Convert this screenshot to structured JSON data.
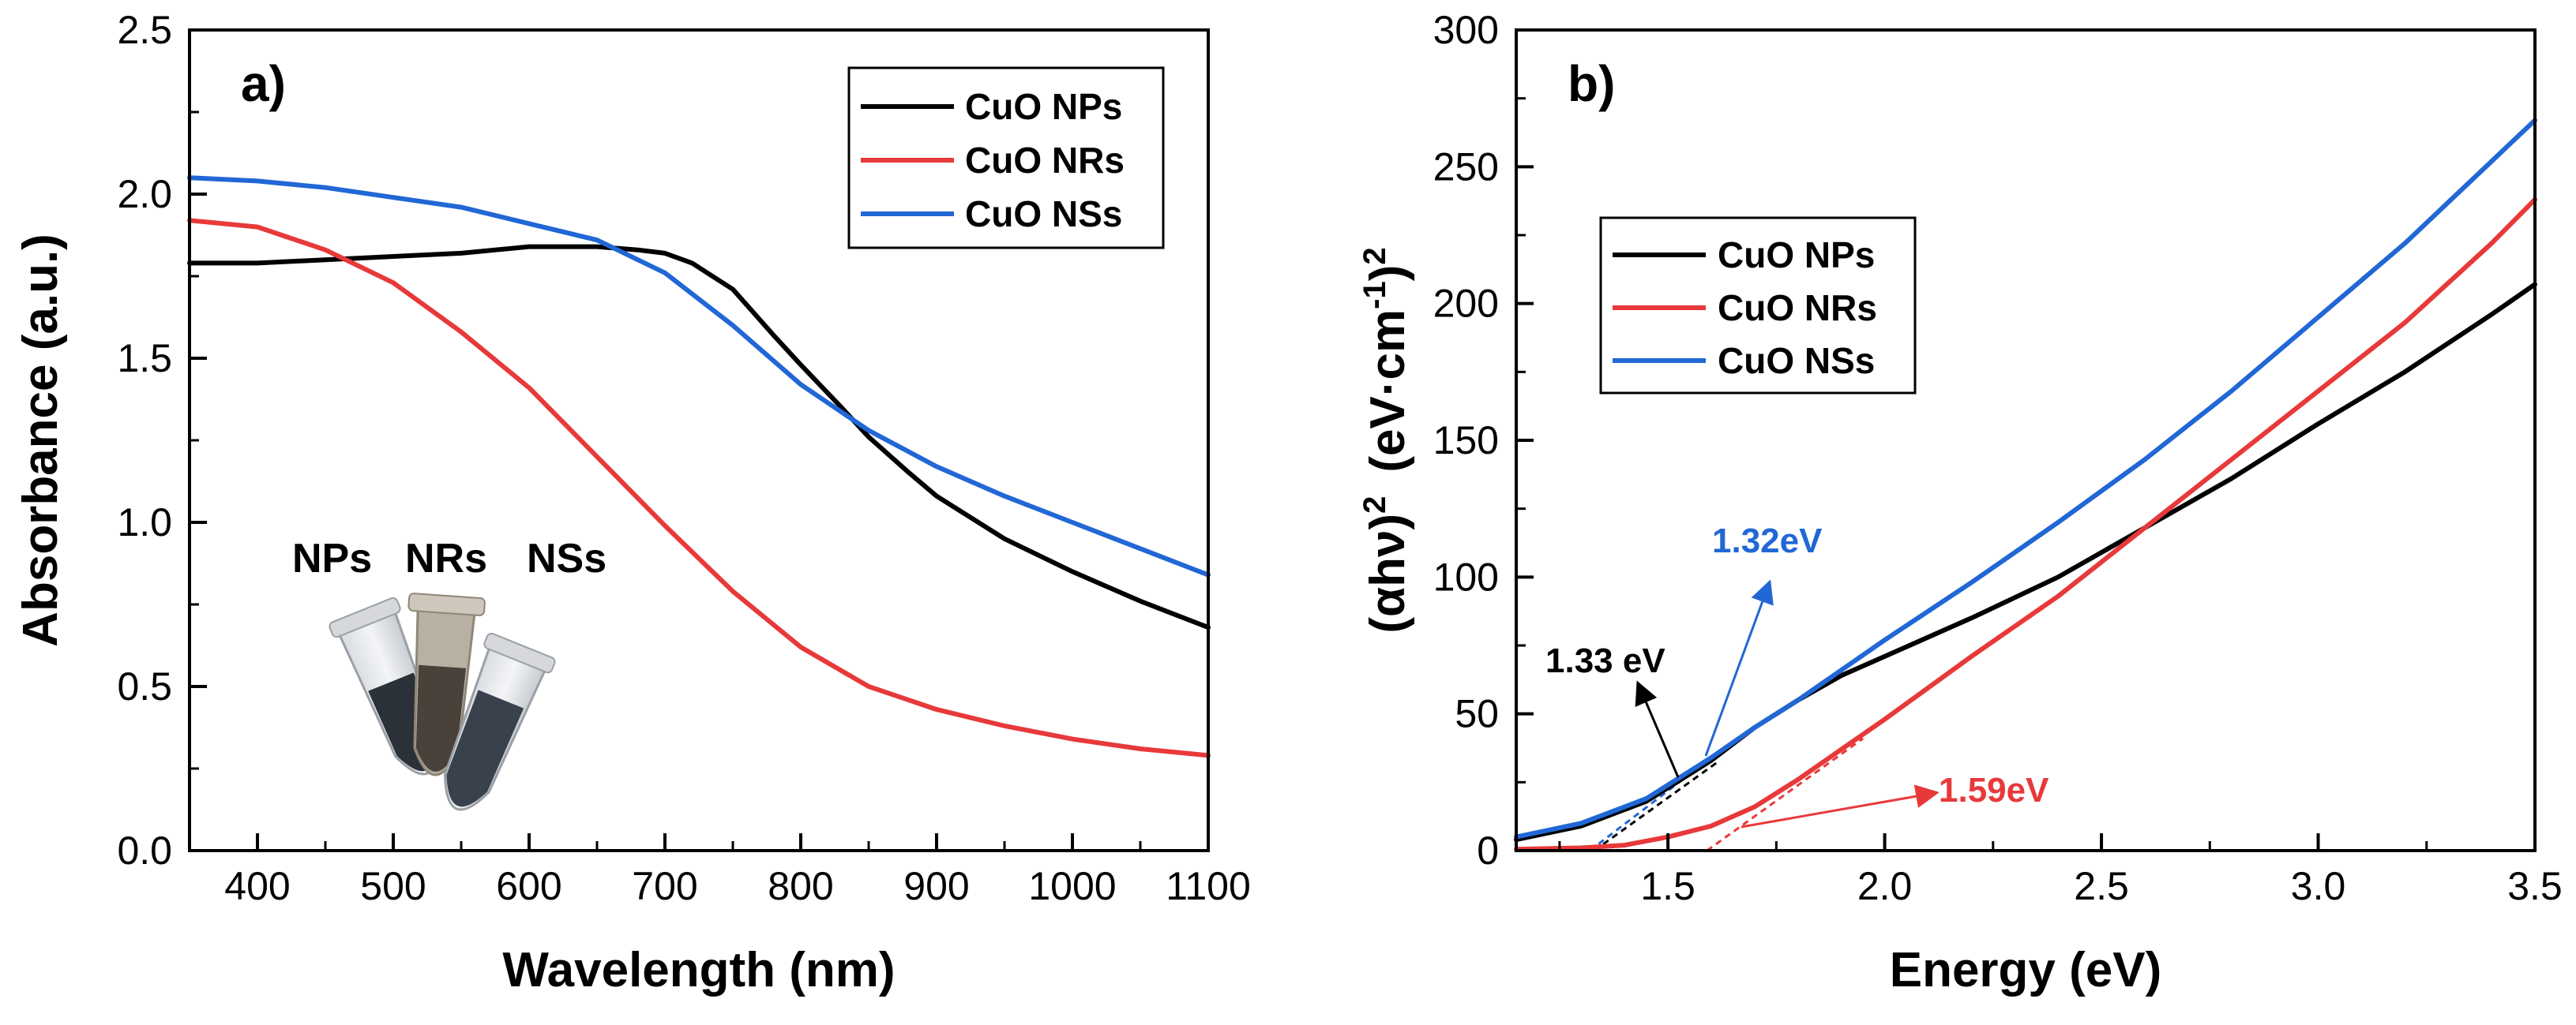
{
  "chart_data": [
    {
      "type": "line",
      "panel_label": "a)",
      "xlabel": "Wavelength (nm)",
      "ylabel": "Absorbance (a.u.)",
      "xlim": [
        350,
        1100
      ],
      "ylim": [
        0,
        2.5
      ],
      "xticks": [
        400,
        500,
        600,
        700,
        800,
        900,
        1000,
        1100
      ],
      "yticks": [
        "0.0",
        "0.5",
        "1.0",
        "1.5",
        "2.0",
        "2.5"
      ],
      "xtick_labels": [
        "400",
        "500",
        "600",
        "700",
        "800",
        "900",
        "1000",
        "1100"
      ],
      "legend_position": "top-right",
      "series": [
        {
          "name": "CuO NPs",
          "color": "#000000",
          "x": [
            350,
            400,
            450,
            500,
            550,
            600,
            650,
            680,
            700,
            720,
            750,
            780,
            800,
            830,
            850,
            880,
            900,
            950,
            1000,
            1050,
            1100
          ],
          "y": [
            1.79,
            1.79,
            1.8,
            1.81,
            1.82,
            1.84,
            1.84,
            1.83,
            1.82,
            1.79,
            1.71,
            1.57,
            1.48,
            1.35,
            1.26,
            1.15,
            1.08,
            0.95,
            0.85,
            0.76,
            0.68
          ]
        },
        {
          "name": "CuO NRs",
          "color": "#e8393a",
          "x": [
            350,
            400,
            450,
            500,
            550,
            600,
            650,
            700,
            750,
            800,
            850,
            900,
            950,
            1000,
            1050,
            1100
          ],
          "y": [
            1.92,
            1.9,
            1.83,
            1.73,
            1.58,
            1.41,
            1.2,
            0.99,
            0.79,
            0.62,
            0.5,
            0.43,
            0.38,
            0.34,
            0.31,
            0.29
          ]
        },
        {
          "name": "CuO NSs",
          "color": "#2167d5",
          "x": [
            350,
            400,
            450,
            500,
            550,
            600,
            650,
            700,
            750,
            800,
            850,
            900,
            950,
            1000,
            1050,
            1100
          ],
          "y": [
            2.05,
            2.04,
            2.02,
            1.99,
            1.96,
            1.91,
            1.86,
            1.76,
            1.6,
            1.42,
            1.28,
            1.17,
            1.08,
            1.0,
            0.92,
            0.84
          ]
        }
      ],
      "inset_labels": [
        "NPs",
        "NRs",
        "NSs"
      ]
    },
    {
      "type": "line",
      "panel_label": "b)",
      "xlabel": "Energy (eV)",
      "ylabel_main": "(αhν)",
      "ylabel_sup1": "2",
      "ylabel_unit": "(eV·cm",
      "ylabel_unit_sup": "-1",
      "ylabel_close": ")",
      "ylabel_sup2": "2",
      "xlim": [
        1.15,
        3.5
      ],
      "ylim": [
        0,
        300
      ],
      "xticks": [
        "1.5",
        "2.0",
        "2.5",
        "3.0",
        "3.5"
      ],
      "yticks": [
        "0",
        "50",
        "100",
        "150",
        "200",
        "250",
        "300"
      ],
      "legend_position": "top-left",
      "series": [
        {
          "name": "CuO NPs",
          "color": "#000000",
          "x": [
            1.15,
            1.3,
            1.45,
            1.6,
            1.7,
            1.8,
            1.9,
            2.0,
            2.2,
            2.4,
            2.6,
            2.8,
            3.0,
            3.2,
            3.4,
            3.5
          ],
          "y": [
            4,
            9,
            18,
            33,
            45,
            55,
            64,
            71,
            85,
            100,
            118,
            136,
            156,
            175,
            196,
            207
          ]
        },
        {
          "name": "CuO NRs",
          "color": "#e8393a",
          "x": [
            1.15,
            1.3,
            1.4,
            1.5,
            1.6,
            1.7,
            1.8,
            1.9,
            2.0,
            2.2,
            2.4,
            2.6,
            2.8,
            3.0,
            3.2,
            3.4,
            3.5
          ],
          "y": [
            0.5,
            1,
            2,
            5,
            9,
            16,
            26,
            37,
            48,
            71,
            93,
            118,
            143,
            168,
            193,
            222,
            238
          ]
        },
        {
          "name": "CuO NSs",
          "color": "#2167d5",
          "x": [
            1.15,
            1.3,
            1.45,
            1.6,
            1.7,
            1.8,
            1.9,
            2.0,
            2.2,
            2.4,
            2.6,
            2.8,
            3.0,
            3.2,
            3.4,
            3.5
          ],
          "y": [
            5,
            10,
            19,
            34,
            45,
            55,
            66,
            77,
            98,
            120,
            143,
            168,
            195,
            222,
            252,
            267
          ]
        }
      ],
      "tangents": [
        {
          "color": "#000000",
          "x": [
            1.33,
            1.62
          ],
          "y": [
            0,
            33
          ]
        },
        {
          "color": "#2167d5",
          "x": [
            1.32,
            1.6
          ],
          "y": [
            0,
            34
          ]
        },
        {
          "color": "#e8393a",
          "x": [
            1.59,
            1.95
          ],
          "y": [
            0,
            41
          ]
        }
      ],
      "annotations": [
        {
          "text": "1.33 eV",
          "color": "#000000"
        },
        {
          "text": "1.32eV",
          "color": "#2167d5"
        },
        {
          "text": "1.59eV",
          "color": "#e8393a"
        }
      ]
    }
  ]
}
